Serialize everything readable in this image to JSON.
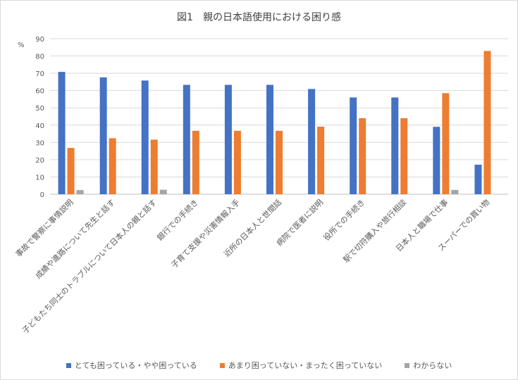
{
  "chart_data": {
    "type": "bar",
    "title": "図1　親の日本語使用における困り感",
    "ylabel": "%",
    "ylim": [
      0,
      90
    ],
    "yticks": [
      0,
      10,
      20,
      30,
      40,
      50,
      60,
      70,
      80,
      90
    ],
    "grid": true,
    "legend_position": "bottom",
    "categories": [
      "事故で警察に事情説明",
      "成績や進路について先生と話す",
      "子どもたち同士のトラブルについて日本人の親と話す",
      "銀行での手続き",
      "子育て支援や災害情報入手",
      "近所の日本人と世間話",
      "病院で医者に説明",
      "役所での手続き",
      "駅で切符購入や旅行相談",
      "日本人と職場で仕事",
      "スーパーでの買い物"
    ],
    "series": [
      {
        "name": "とても困っている・やや困っている",
        "color": "#4472c4",
        "values": [
          70.8,
          67.6,
          65.8,
          63.3,
          63.3,
          63.3,
          60.9,
          56.0,
          56.0,
          39.0,
          17.1
        ]
      },
      {
        "name": "あまり困っていない・まったく困っていない",
        "color": "#ed7d31",
        "values": [
          26.8,
          32.4,
          31.6,
          36.7,
          36.7,
          36.7,
          39.1,
          44.0,
          44.0,
          58.5,
          82.9
        ]
      },
      {
        "name": "わからない",
        "color": "#a5a5a5",
        "values": [
          2.4,
          0,
          2.6,
          0,
          0,
          0,
          0,
          0,
          0,
          2.5,
          0
        ]
      }
    ]
  }
}
